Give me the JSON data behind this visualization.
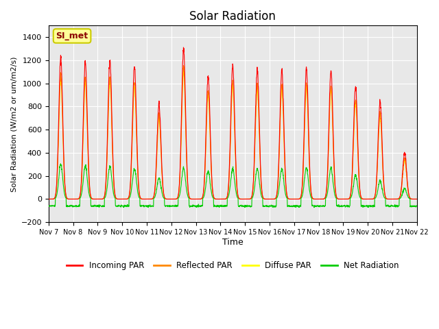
{
  "title": "Solar Radiation",
  "ylabel": "Solar Radiation (W/m2 or um/m2/s)",
  "xlabel": "Time",
  "ylim": [
    -200,
    1500
  ],
  "yticks": [
    -200,
    0,
    200,
    400,
    600,
    800,
    1000,
    1200,
    1400
  ],
  "x_tick_labels": [
    "Nov 7",
    "Nov 8",
    "Nov 9",
    "Nov 10",
    "Nov 11",
    "Nov 12",
    "Nov 13",
    "Nov 14",
    "Nov 15",
    "Nov 16",
    "Nov 17",
    "Nov 18",
    "Nov 19",
    "Nov 20",
    "Nov 21",
    "Nov 22"
  ],
  "station_label": "SI_met",
  "colors": {
    "incoming": "#ff0000",
    "reflected": "#ff8800",
    "diffuse": "#ffff00",
    "net": "#00cc00",
    "background": "#e8e8e8",
    "grid": "#ffffff"
  },
  "legend_labels": [
    "Incoming PAR",
    "Reflected PAR",
    "Diffuse PAR",
    "Net Radiation"
  ],
  "n_days": 15,
  "peaks": [
    1220,
    1190,
    1200,
    1150,
    820,
    1300,
    1060,
    1150,
    1110,
    1110,
    1130,
    1110,
    980,
    850,
    400
  ],
  "net_peaks": [
    300,
    290,
    280,
    260,
    180,
    270,
    240,
    260,
    260,
    260,
    270,
    270,
    210,
    160,
    90
  ],
  "night_net": -60
}
